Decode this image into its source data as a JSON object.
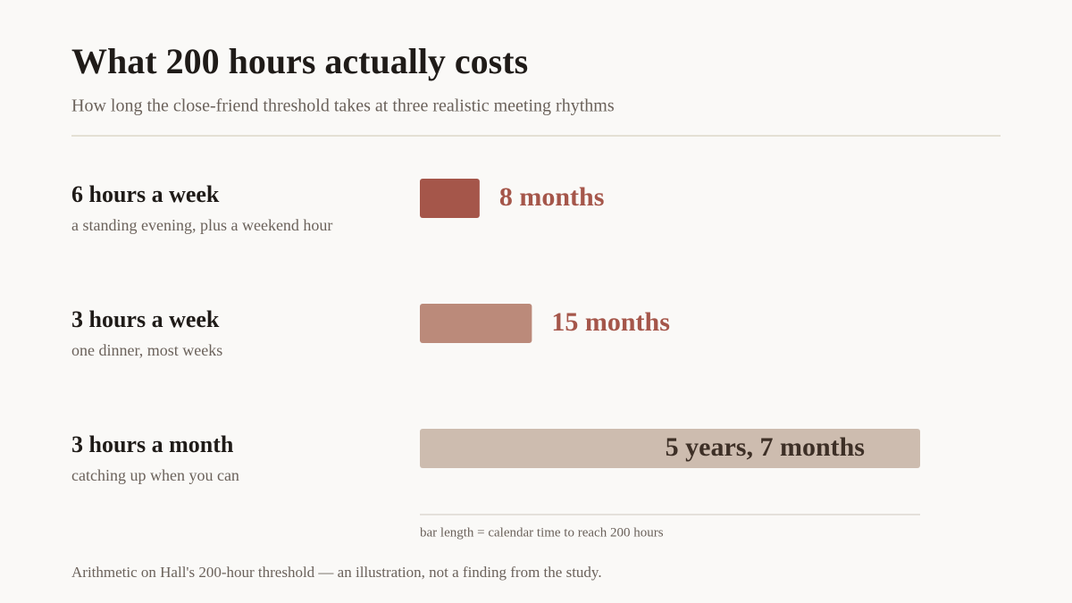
{
  "chart_data": {
    "type": "bar",
    "title": "What 200 hours actually costs",
    "subtitle": "How long the close-friend threshold takes at three realistic meeting rhythms",
    "categories": [
      "6 hours a week",
      "3 hours a week",
      "3 hours a month"
    ],
    "descriptions": [
      "a standing evening, plus a weekend hour",
      "one dinner, most weeks",
      "catching up when you can"
    ],
    "values": [
      8,
      15,
      67
    ],
    "value_labels": [
      "8 months",
      "15 months",
      "5 years, 7 months"
    ],
    "colors": [
      "#a5564a",
      "#bb8a7a",
      "#cdbcaf"
    ],
    "axis_note": "bar length = calendar time to reach 200 hours",
    "footnote": "Arithmetic on Hall's 200-hour threshold — an illustration, not a finding from the study."
  }
}
